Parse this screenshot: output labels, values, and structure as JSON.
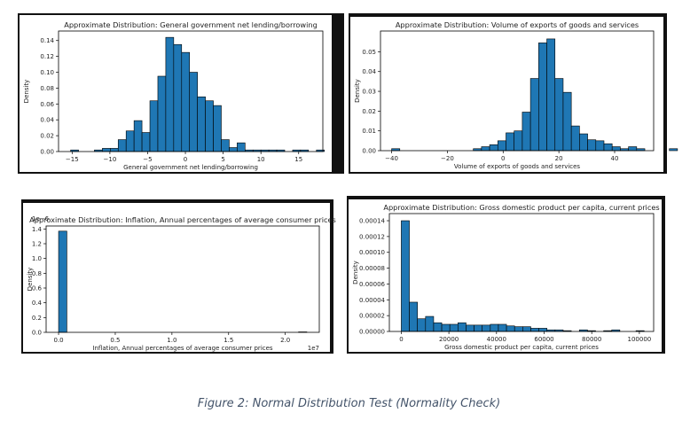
{
  "chart_data": [
    {
      "type": "bar",
      "title": "Approximate Distribution: General government net lending/borrowing",
      "xlabel": "General government net lending/borrowing",
      "ylabel": "Density",
      "xlim": [
        -16.8,
        18.2
      ],
      "ylim": [
        0,
        0.152
      ],
      "xticks": [
        -15,
        -10,
        -5,
        0,
        5,
        10,
        15
      ],
      "yticks": [
        0,
        0.02,
        0.04,
        0.06,
        0.08,
        0.1,
        0.12,
        0.14
      ],
      "ytick_decimals": 2,
      "bin_start": -15.2,
      "bin_width": 1.05,
      "values": [
        0.002,
        0,
        0,
        0.002,
        0.004,
        0.004,
        0.015,
        0.026,
        0.039,
        0.024,
        0.064,
        0.095,
        0.144,
        0.135,
        0.125,
        0.1,
        0.069,
        0.064,
        0.058,
        0.015,
        0.005,
        0.011,
        0.002,
        0.002,
        0.002,
        0.002,
        0.002,
        0,
        0.002,
        0.002,
        0,
        0.002
      ],
      "color": "#1f77b4"
    },
    {
      "type": "bar",
      "title": "Approximate Distribution: Volume of exports of goods and services",
      "xlabel": "Volume of exports of goods and services",
      "ylabel": "Density",
      "xlim": [
        -44,
        54
      ],
      "ylim": [
        0,
        0.0605
      ],
      "xticks": [
        -40,
        -20,
        0,
        20,
        40
      ],
      "yticks": [
        0,
        0.01,
        0.02,
        0.03,
        0.04,
        0.05
      ],
      "ytick_decimals": 2,
      "bin_start": -40,
      "bin_width": 2.93,
      "values": [
        0.001,
        0,
        0,
        0,
        0,
        0,
        0,
        0,
        0,
        0,
        0.001,
        0.002,
        0.003,
        0.005,
        0.009,
        0.01,
        0.0195,
        0.0365,
        0.0545,
        0.0565,
        0.0365,
        0.0295,
        0.0125,
        0.0085,
        0.0055,
        0.005,
        0.0035,
        0.002,
        0.001,
        0.002,
        0.001,
        0,
        0,
        0,
        0.001
      ],
      "color": "#1f77b4"
    },
    {
      "type": "bar",
      "title": "Approximate Distribution: Inflation, Annual percentages of average consumer prices",
      "xlabel": "Inflation, Annual percentages of average consumer prices",
      "ylabel": "Density",
      "offset_text_y": "1e−6",
      "offset_text_x": "1e7",
      "xlim": [
        -1100000,
        23000000
      ],
      "ylim": [
        0,
        1.44
      ],
      "xticks": [
        0,
        5000000,
        10000000,
        15000000,
        20000000
      ],
      "xtick_labels": [
        "0.0",
        "0.5",
        "1.0",
        "1.5",
        "2.0"
      ],
      "yticks": [
        0,
        0.2,
        0.4,
        0.6,
        0.8,
        1.0,
        1.2,
        1.4
      ],
      "ytick_decimals": 1,
      "bin_start": 0,
      "bin_width": 730000,
      "values": [
        1.37,
        0,
        0,
        0,
        0,
        0,
        0,
        0,
        0,
        0,
        0,
        0,
        0,
        0,
        0,
        0,
        0,
        0,
        0,
        0,
        0,
        0,
        0,
        0,
        0,
        0,
        0,
        0,
        0,
        0.006
      ],
      "color": "#1f77b4"
    },
    {
      "type": "bar",
      "title": "Approximate Distribution: Gross domestic product per capita, current prices",
      "xlabel": "Gross domestic product per capita, current prices",
      "ylabel": "Density",
      "xlim": [
        -5000,
        106000
      ],
      "ylim": [
        0,
        0.000149
      ],
      "xticks": [
        0,
        20000,
        40000,
        60000,
        80000,
        100000
      ],
      "yticks": [
        0,
        2e-05,
        4e-05,
        6e-05,
        8e-05,
        0.0001,
        0.00012,
        0.00014
      ],
      "ytick_decimals": 5,
      "bin_start": 0,
      "bin_width": 3400,
      "values": [
        0.00014,
        3.7e-05,
        1.6e-05,
        1.9e-05,
        1.1e-05,
        9e-06,
        9e-06,
        1.1e-05,
        8e-06,
        8e-06,
        8e-06,
        9e-06,
        9e-06,
        7e-06,
        6e-06,
        6e-06,
        4e-06,
        4e-06,
        2e-06,
        2e-06,
        1e-06,
        0,
        2e-06,
        1e-06,
        0,
        1e-06,
        2e-06,
        0,
        0,
        1e-06
      ],
      "color": "#1f77b4"
    }
  ],
  "caption": "Figure 2: Normal Distribution Test (Normality Check)"
}
